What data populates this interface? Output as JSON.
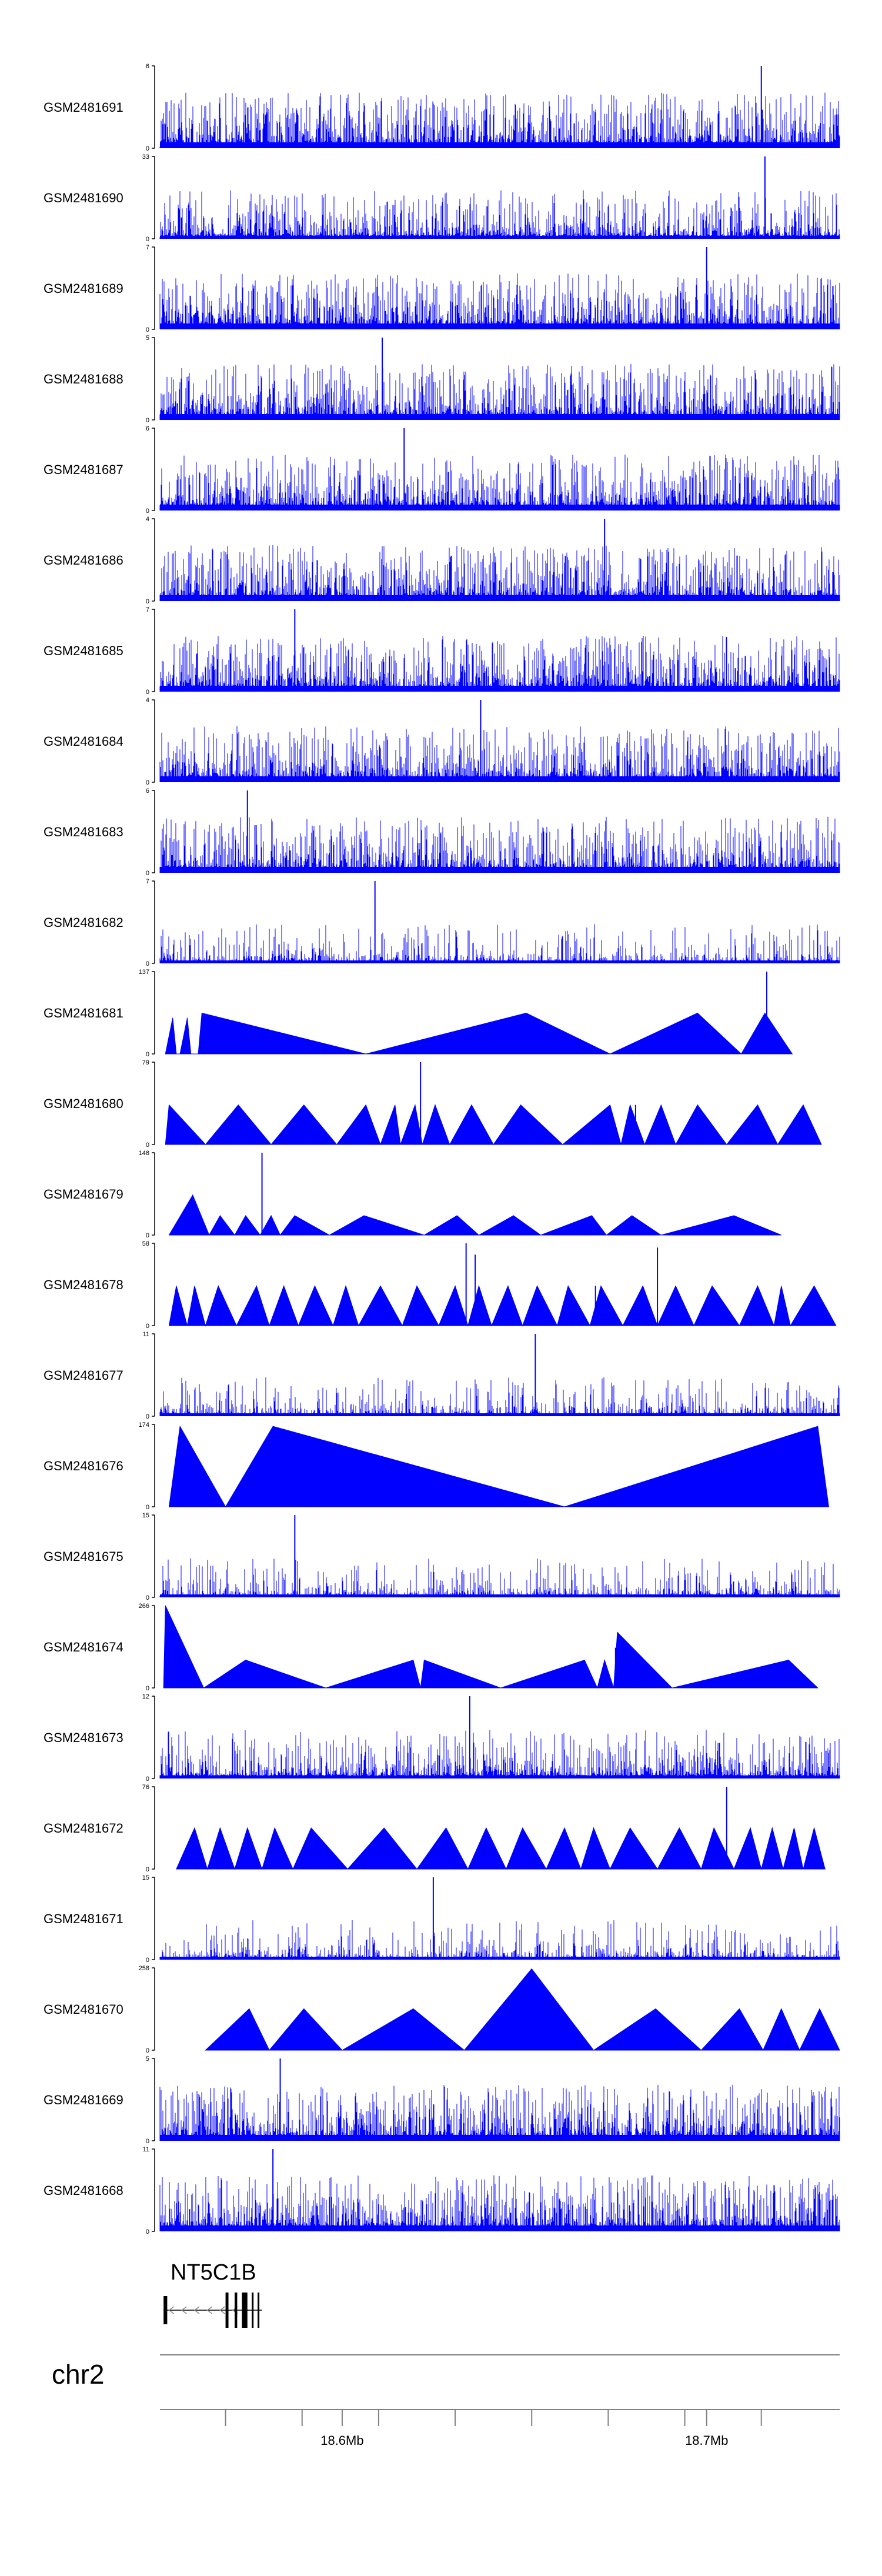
{
  "chart_data": {
    "type": "area",
    "colors": {
      "signal": "#0000ff",
      "axis": "#000000",
      "gene": "#000000",
      "chrom_line": "#808080"
    },
    "xlim": [
      18.55,
      18.7365
    ],
    "tracks": [
      {
        "name": "GSM2481691",
        "ymax_label": "6",
        "ylim": [
          0,
          6
        ],
        "style": "spiky",
        "peak_x": 18.715,
        "peak_y": 6
      },
      {
        "name": "GSM2481690",
        "ymax_label": "33",
        "ylim": [
          0,
          33
        ],
        "style": "mixed",
        "peak_x": 18.716,
        "peak_y": 33
      },
      {
        "name": "GSM2481689",
        "ymax_label": "7",
        "ylim": [
          0,
          7
        ],
        "style": "spiky",
        "peak_x": 18.7,
        "peak_y": 7
      },
      {
        "name": "GSM2481688",
        "ymax_label": "5",
        "ylim": [
          0,
          5
        ],
        "style": "spiky",
        "peak_x": 18.611,
        "peak_y": 5
      },
      {
        "name": "GSM2481687",
        "ymax_label": "6",
        "ylim": [
          0,
          6
        ],
        "style": "spiky",
        "peak_x": 18.617,
        "peak_y": 6
      },
      {
        "name": "GSM2481686",
        "ymax_label": "4",
        "ylim": [
          0,
          4
        ],
        "style": "spiky",
        "peak_x": 18.672,
        "peak_y": 4
      },
      {
        "name": "GSM2481685",
        "ymax_label": "7",
        "ylim": [
          0,
          7
        ],
        "style": "spiky",
        "peak_x": 18.587,
        "peak_y": 7
      },
      {
        "name": "GSM2481684",
        "ymax_label": "4",
        "ylim": [
          0,
          4
        ],
        "style": "spiky",
        "peak_x": 18.638,
        "peak_y": 4
      },
      {
        "name": "GSM2481683",
        "ymax_label": "6",
        "ylim": [
          0,
          6
        ],
        "style": "spiky",
        "peak_x": 18.574,
        "peak_y": 6
      },
      {
        "name": "GSM2481682",
        "ymax_label": "7",
        "ylim": [
          0,
          7
        ],
        "style": "sparse",
        "peak_x": 18.609,
        "peak_y": 7
      },
      {
        "name": "GSM2481681",
        "ymax_label": "137",
        "ylim": [
          0,
          137
        ],
        "style": "peaks",
        "points": [
          [
            18.5515,
            0
          ],
          [
            18.5535,
            60
          ],
          [
            18.5545,
            0
          ],
          [
            18.5555,
            0
          ],
          [
            18.5575,
            60
          ],
          [
            18.5585,
            0
          ],
          [
            18.5605,
            0
          ],
          [
            18.5615,
            68
          ],
          [
            18.6065,
            0
          ],
          [
            18.6505,
            68
          ],
          [
            18.6735,
            0
          ],
          [
            18.6975,
            68
          ],
          [
            18.7095,
            0
          ],
          [
            18.716,
            68
          ],
          [
            18.7235,
            0
          ]
        ],
        "spikes": [
          [
            18.7165,
            137
          ]
        ]
      },
      {
        "name": "GSM2481680",
        "ymax_label": "79",
        "ylim": [
          0,
          79
        ],
        "style": "peaks",
        "points": [
          [
            18.5515,
            0
          ],
          [
            18.5525,
            38
          ],
          [
            18.5625,
            0
          ],
          [
            18.5715,
            38
          ],
          [
            18.5805,
            0
          ],
          [
            18.5895,
            38
          ],
          [
            18.5985,
            0
          ],
          [
            18.6065,
            38
          ],
          [
            18.6105,
            0
          ],
          [
            18.6145,
            38
          ],
          [
            18.616,
            0
          ],
          [
            18.62,
            38
          ],
          [
            18.622,
            0
          ],
          [
            18.6255,
            38
          ],
          [
            18.6295,
            0
          ],
          [
            18.6355,
            38
          ],
          [
            18.6415,
            0
          ],
          [
            18.649,
            38
          ],
          [
            18.6605,
            0
          ],
          [
            18.6735,
            38
          ],
          [
            18.6765,
            0
          ],
          [
            18.679,
            38
          ],
          [
            18.683,
            0
          ],
          [
            18.6875,
            38
          ],
          [
            18.6915,
            0
          ],
          [
            18.6975,
            38
          ],
          [
            18.7055,
            0
          ],
          [
            18.714,
            38
          ],
          [
            18.7195,
            0
          ],
          [
            18.7265,
            38
          ],
          [
            18.7315,
            0
          ]
        ],
        "spikes": [
          [
            18.6215,
            79
          ],
          [
            18.6805,
            38
          ]
        ]
      },
      {
        "name": "GSM2481679",
        "ymax_label": "148",
        "ylim": [
          0,
          148
        ],
        "style": "peaks",
        "points": [
          [
            18.5525,
            0
          ],
          [
            18.559,
            72
          ],
          [
            18.5635,
            0
          ],
          [
            18.5665,
            35
          ],
          [
            18.5705,
            0
          ],
          [
            18.5735,
            35
          ],
          [
            18.5775,
            0
          ],
          [
            18.5805,
            35
          ],
          [
            18.583,
            0
          ],
          [
            18.587,
            35
          ],
          [
            18.5965,
            0
          ],
          [
            18.606,
            35
          ],
          [
            18.6225,
            0
          ],
          [
            18.6315,
            35
          ],
          [
            18.6375,
            0
          ],
          [
            18.647,
            35
          ],
          [
            18.6545,
            0
          ],
          [
            18.6685,
            35
          ],
          [
            18.6725,
            0
          ],
          [
            18.6795,
            35
          ],
          [
            18.6875,
            0
          ],
          [
            18.7075,
            35
          ],
          [
            18.7205,
            0
          ]
        ],
        "spikes": [
          [
            18.578,
            148
          ]
        ]
      },
      {
        "name": "GSM2481678",
        "ymax_label": "58",
        "ylim": [
          0,
          58
        ],
        "style": "peaks",
        "points": [
          [
            18.5525,
            0
          ],
          [
            18.5545,
            28
          ],
          [
            18.5575,
            0
          ],
          [
            18.5595,
            28
          ],
          [
            18.5625,
            0
          ],
          [
            18.566,
            28
          ],
          [
            18.571,
            0
          ],
          [
            18.5765,
            28
          ],
          [
            18.58,
            0
          ],
          [
            18.584,
            28
          ],
          [
            18.588,
            0
          ],
          [
            18.5925,
            28
          ],
          [
            18.5975,
            0
          ],
          [
            18.601,
            28
          ],
          [
            18.6045,
            0
          ],
          [
            18.6105,
            28
          ],
          [
            18.6165,
            0
          ],
          [
            18.6205,
            28
          ],
          [
            18.6265,
            0
          ],
          [
            18.631,
            28
          ],
          [
            18.6345,
            0
          ],
          [
            18.6375,
            28
          ],
          [
            18.641,
            0
          ],
          [
            18.6455,
            28
          ],
          [
            18.6495,
            0
          ],
          [
            18.6535,
            28
          ],
          [
            18.659,
            0
          ],
          [
            18.662,
            28
          ],
          [
            18.668,
            0
          ],
          [
            18.671,
            28
          ],
          [
            18.677,
            0
          ],
          [
            18.6825,
            28
          ],
          [
            18.6865,
            0
          ],
          [
            18.6915,
            28
          ],
          [
            18.6965,
            0
          ],
          [
            18.7015,
            28
          ],
          [
            18.709,
            0
          ],
          [
            18.714,
            28
          ],
          [
            18.7185,
            0
          ],
          [
            18.7205,
            28
          ],
          [
            18.723,
            0
          ],
          [
            18.7295,
            28
          ],
          [
            18.7355,
            0
          ]
        ],
        "spikes": [
          [
            18.634,
            58
          ],
          [
            18.6365,
            50
          ],
          [
            18.6865,
            55
          ],
          [
            18.6695,
            28
          ]
        ]
      },
      {
        "name": "GSM2481677",
        "ymax_label": "11",
        "ylim": [
          0,
          11
        ],
        "style": "sparse",
        "peak_x": 18.653,
        "peak_y": 11
      },
      {
        "name": "GSM2481676",
        "ymax_label": "174",
        "ylim": [
          0,
          174
        ],
        "style": "peaks",
        "points": [
          [
            18.5525,
            0
          ],
          [
            18.5555,
            170
          ],
          [
            18.568,
            0
          ],
          [
            18.581,
            170
          ],
          [
            18.661,
            0
          ],
          [
            18.7305,
            170
          ],
          [
            18.7335,
            0
          ]
        ],
        "spikes": []
      },
      {
        "name": "GSM2481675",
        "ymax_label": "15",
        "ylim": [
          0,
          15
        ],
        "style": "sparse",
        "peak_x": 18.587,
        "peak_y": 15
      },
      {
        "name": "GSM2481674",
        "ymax_label": "266",
        "ylim": [
          0,
          266
        ],
        "style": "peaks",
        "points": [
          [
            18.551,
            0
          ],
          [
            18.5515,
            266
          ],
          [
            18.562,
            0
          ],
          [
            18.5735,
            90
          ],
          [
            18.5955,
            0
          ],
          [
            18.6195,
            90
          ],
          [
            18.6215,
            0
          ],
          [
            18.6225,
            90
          ],
          [
            18.6435,
            0
          ],
          [
            18.6665,
            90
          ],
          [
            18.67,
            0
          ],
          [
            18.672,
            90
          ],
          [
            18.6745,
            0
          ],
          [
            18.6755,
            180
          ],
          [
            18.6905,
            0
          ],
          [
            18.7225,
            90
          ],
          [
            18.7305,
            0
          ]
        ],
        "spikes": [
          [
            18.675,
            130
          ]
        ]
      },
      {
        "name": "GSM2481673",
        "ymax_label": "12",
        "ylim": [
          0,
          12
        ],
        "style": "mixed",
        "peak_x": 18.635,
        "peak_y": 12
      },
      {
        "name": "GSM2481672",
        "ymax_label": "76",
        "ylim": [
          0,
          76
        ],
        "style": "peaks",
        "points": [
          [
            18.5545,
            0
          ],
          [
            18.5595,
            38
          ],
          [
            18.563,
            0
          ],
          [
            18.5665,
            38
          ],
          [
            18.5705,
            0
          ],
          [
            18.574,
            38
          ],
          [
            18.578,
            0
          ],
          [
            18.5815,
            38
          ],
          [
            18.5865,
            0
          ],
          [
            18.5915,
            38
          ],
          [
            18.6015,
            0
          ],
          [
            18.6115,
            38
          ],
          [
            18.6205,
            0
          ],
          [
            18.6285,
            38
          ],
          [
            18.6345,
            0
          ],
          [
            18.6395,
            38
          ],
          [
            18.645,
            0
          ],
          [
            18.6495,
            38
          ],
          [
            18.656,
            0
          ],
          [
            18.661,
            38
          ],
          [
            18.6655,
            0
          ],
          [
            18.669,
            38
          ],
          [
            18.6735,
            0
          ],
          [
            18.679,
            38
          ],
          [
            18.6865,
            0
          ],
          [
            18.6925,
            38
          ],
          [
            18.6985,
            0
          ],
          [
            18.702,
            38
          ],
          [
            18.7075,
            0
          ],
          [
            18.712,
            38
          ],
          [
            18.715,
            0
          ],
          [
            18.718,
            38
          ],
          [
            18.721,
            0
          ],
          [
            18.724,
            38
          ],
          [
            18.7265,
            0
          ],
          [
            18.7295,
            38
          ],
          [
            18.7325,
            0
          ]
        ],
        "spikes": [
          [
            18.7055,
            76
          ]
        ]
      },
      {
        "name": "GSM2481671",
        "ymax_label": "15",
        "ylim": [
          0,
          15
        ],
        "style": "sparse",
        "peak_x": 18.625,
        "peak_y": 15
      },
      {
        "name": "GSM2481670",
        "ymax_label": "258",
        "ylim": [
          0,
          258
        ],
        "style": "peaks",
        "points": [
          [
            18.5625,
            0
          ],
          [
            18.5745,
            130
          ],
          [
            18.58,
            0
          ],
          [
            18.5895,
            130
          ],
          [
            18.6,
            0
          ],
          [
            18.6195,
            130
          ],
          [
            18.6335,
            0
          ],
          [
            18.652,
            255
          ],
          [
            18.669,
            0
          ],
          [
            18.686,
            130
          ],
          [
            18.6985,
            0
          ],
          [
            18.709,
            130
          ],
          [
            18.7155,
            0
          ],
          [
            18.7205,
            130
          ],
          [
            18.7255,
            0
          ],
          [
            18.731,
            130
          ],
          [
            18.7365,
            0
          ]
        ],
        "spikes": []
      },
      {
        "name": "GSM2481669",
        "ymax_label": "5",
        "ylim": [
          0,
          5
        ],
        "style": "spiky",
        "peak_x": 18.583,
        "peak_y": 5
      },
      {
        "name": "GSM2481668",
        "ymax_label": "11",
        "ylim": [
          0,
          11
        ],
        "style": "spiky",
        "peak_x": 18.581,
        "peak_y": 11
      }
    ],
    "gene": {
      "name": "NT5C1B",
      "start": 18.551,
      "end": 18.578,
      "exons": [
        [
          18.551,
          18.552
        ],
        [
          18.568,
          18.5688
        ],
        [
          18.5705,
          18.5712
        ],
        [
          18.5725,
          18.574
        ],
        [
          18.5752,
          18.5756
        ],
        [
          18.5768,
          18.5772
        ]
      ],
      "strand": "-"
    },
    "chromosome": "chr2",
    "axis": {
      "ticks": [
        18.568,
        18.589,
        18.61,
        18.631,
        18.652,
        18.673,
        18.694,
        18.715
      ],
      "labeled_ticks": [
        {
          "x": 18.6,
          "label": "18.6Mb"
        },
        {
          "x": 18.7,
          "label": "18.7Mb"
        }
      ]
    }
  }
}
